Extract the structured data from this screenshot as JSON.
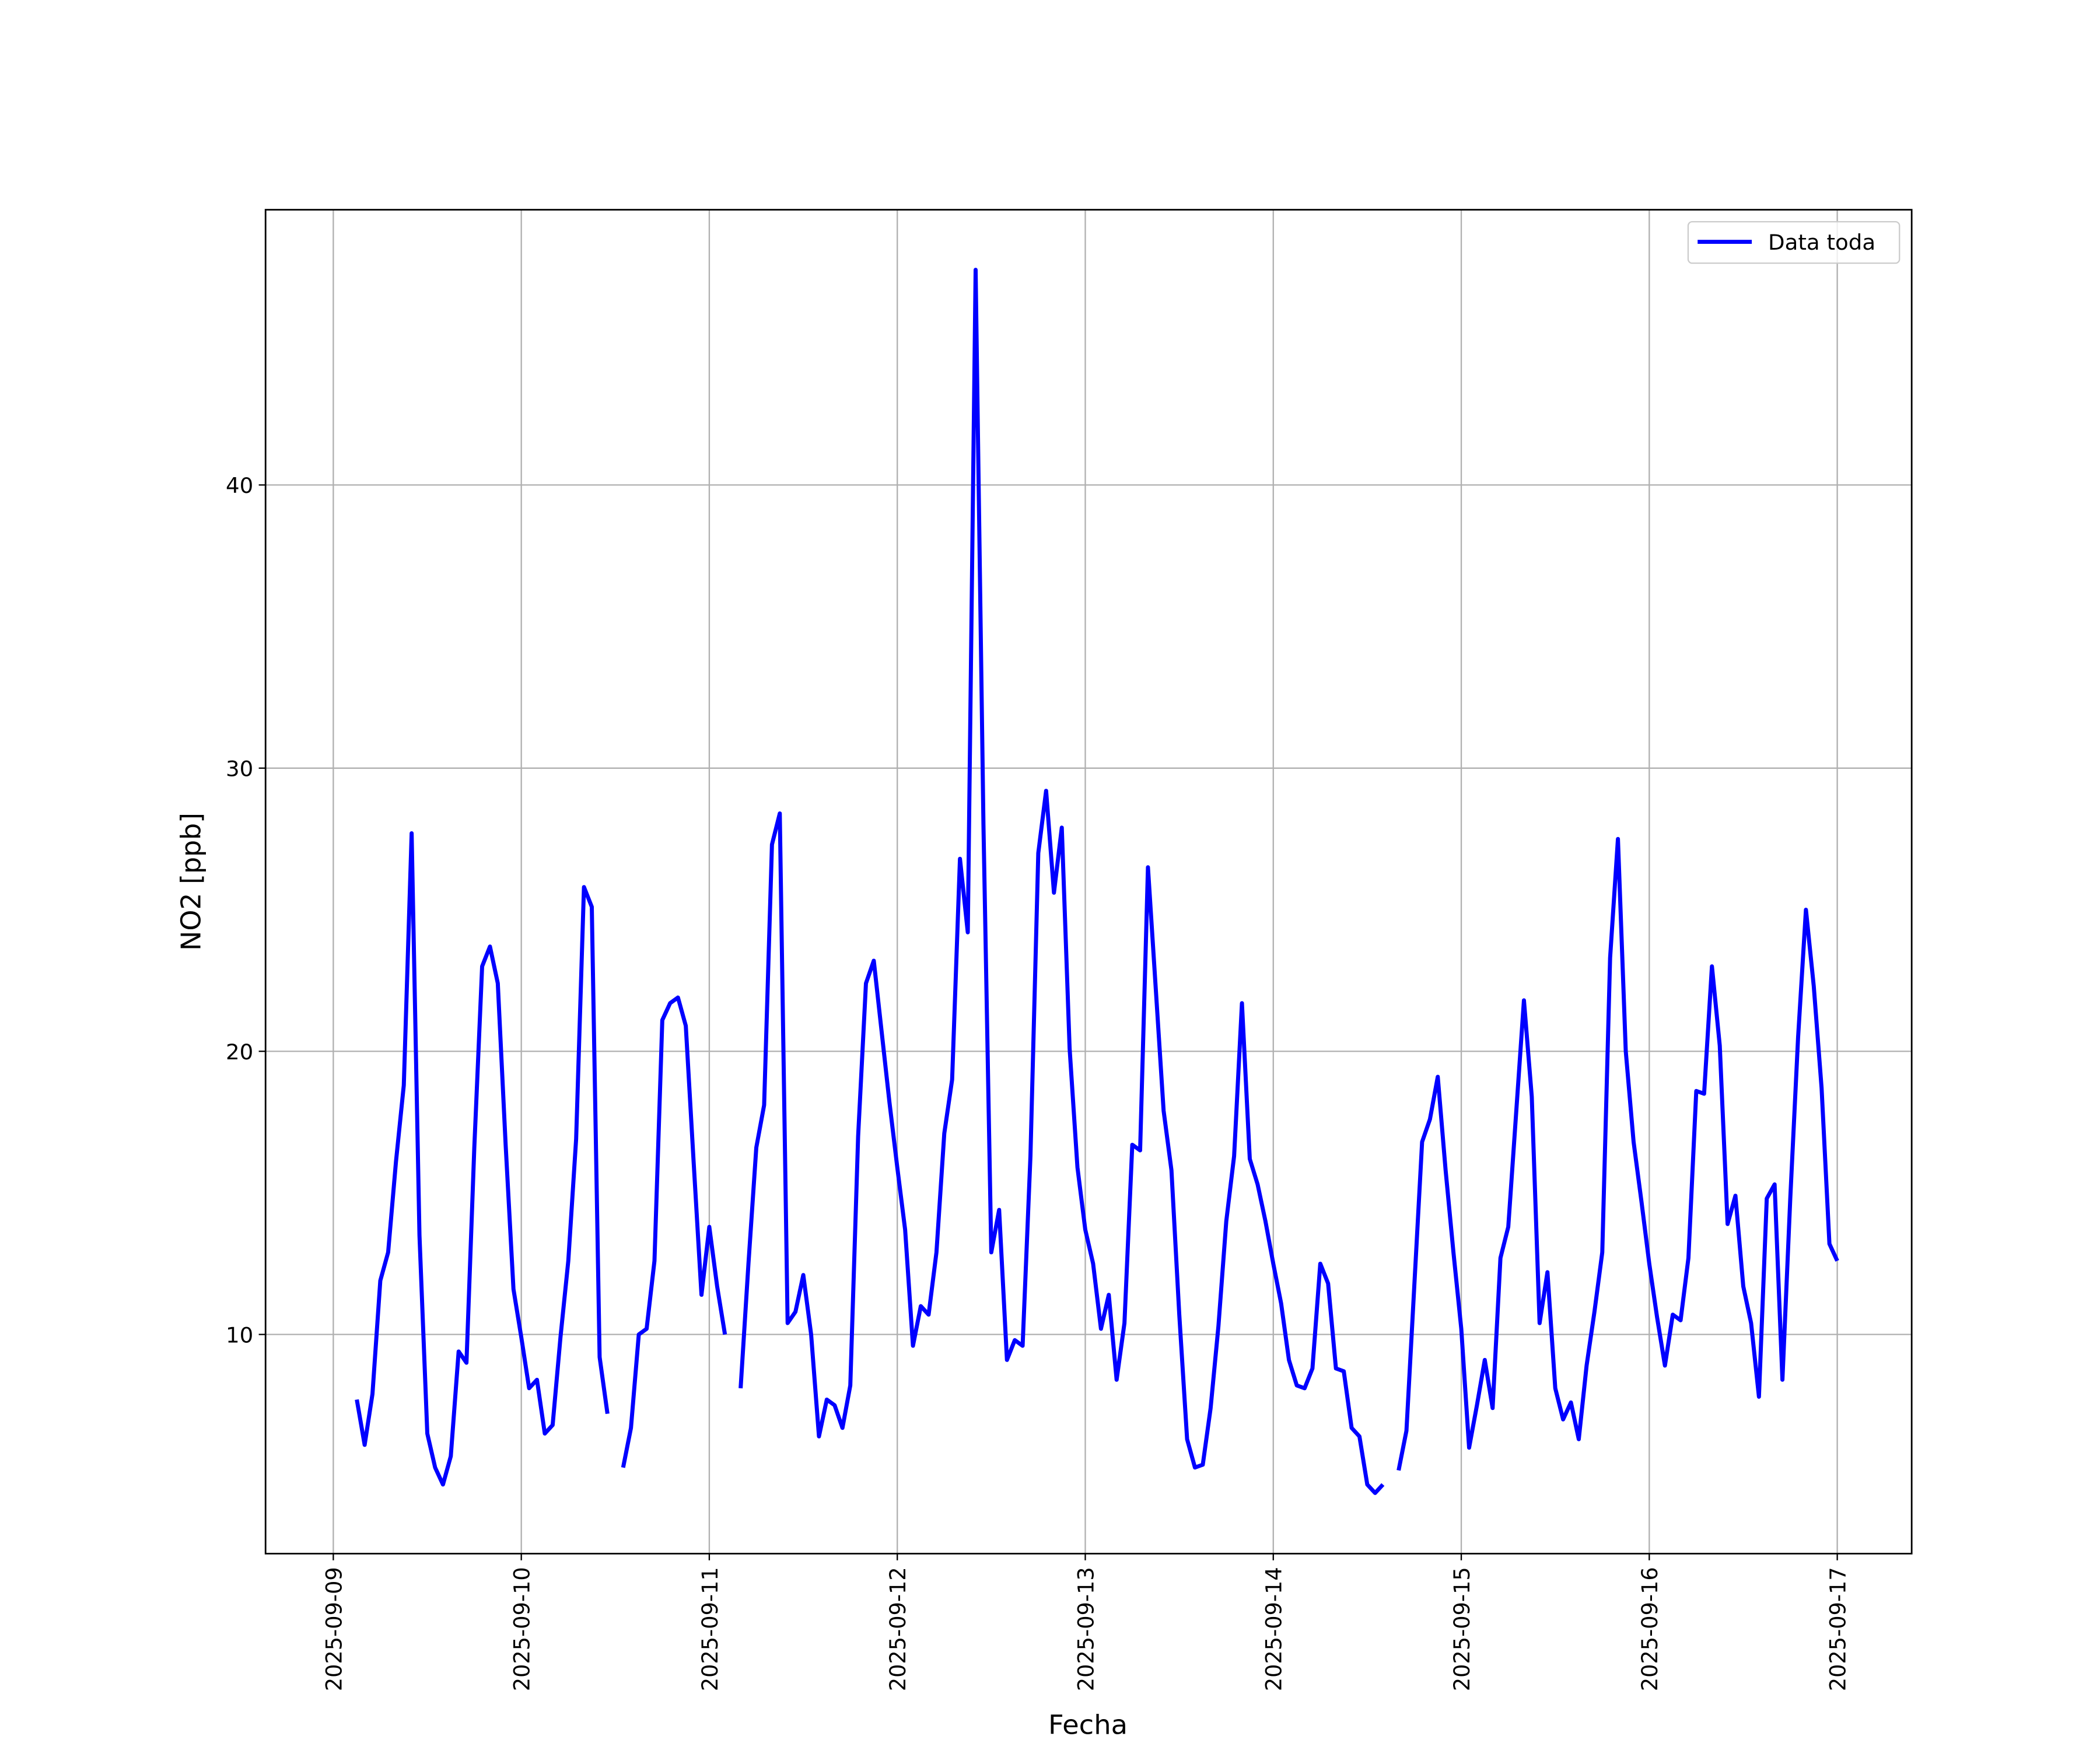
{
  "chart_data": {
    "type": "line",
    "ylabel": "NO2 [ppb]",
    "xlabel": "Fecha",
    "x": [
      "2025-09-09 03:00",
      "2025-09-09 04:00",
      "2025-09-09 05:00",
      "2025-09-09 06:00",
      "2025-09-09 07:00",
      "2025-09-09 08:00",
      "2025-09-09 09:00",
      "2025-09-09 10:00",
      "2025-09-09 11:00",
      "2025-09-09 12:00",
      "2025-09-09 13:00",
      "2025-09-09 14:00",
      "2025-09-09 15:00",
      "2025-09-09 16:00",
      "2025-09-09 17:00",
      "2025-09-09 18:00",
      "2025-09-09 19:00",
      "2025-09-09 20:00",
      "2025-09-09 21:00",
      "2025-09-09 22:00",
      "2025-09-09 23:00",
      "2025-09-10 00:00",
      "2025-09-10 01:00",
      "2025-09-10 02:00",
      "2025-09-10 03:00",
      "2025-09-10 04:00",
      "2025-09-10 05:00",
      "2025-09-10 06:00",
      "2025-09-10 07:00",
      "2025-09-10 08:00",
      "2025-09-10 09:00",
      "2025-09-10 10:00",
      "2025-09-10 11:00",
      "2025-09-10 12:00",
      "2025-09-10 13:00",
      "2025-09-10 14:00",
      "2025-09-10 15:00",
      "2025-09-10 16:00",
      "2025-09-10 17:00",
      "2025-09-10 18:00",
      "2025-09-10 19:00",
      "2025-09-10 20:00",
      "2025-09-10 21:00",
      "2025-09-10 22:00",
      "2025-09-10 23:00",
      "2025-09-11 00:00",
      "2025-09-11 01:00",
      "2025-09-11 02:00",
      "2025-09-11 03:00",
      "2025-09-11 04:00",
      "2025-09-11 05:00",
      "2025-09-11 06:00",
      "2025-09-11 07:00",
      "2025-09-11 08:00",
      "2025-09-11 09:00",
      "2025-09-11 10:00",
      "2025-09-11 11:00",
      "2025-09-11 12:00",
      "2025-09-11 13:00",
      "2025-09-11 14:00",
      "2025-09-11 15:00",
      "2025-09-11 16:00",
      "2025-09-11 17:00",
      "2025-09-11 18:00",
      "2025-09-11 19:00",
      "2025-09-11 20:00",
      "2025-09-11 21:00",
      "2025-09-11 22:00",
      "2025-09-11 23:00",
      "2025-09-12 00:00",
      "2025-09-12 01:00",
      "2025-09-12 02:00",
      "2025-09-12 03:00",
      "2025-09-12 04:00",
      "2025-09-12 05:00",
      "2025-09-12 06:00",
      "2025-09-12 07:00",
      "2025-09-12 08:00",
      "2025-09-12 09:00",
      "2025-09-12 10:00",
      "2025-09-12 11:00",
      "2025-09-12 12:00",
      "2025-09-12 13:00",
      "2025-09-12 14:00",
      "2025-09-12 15:00",
      "2025-09-12 16:00",
      "2025-09-12 17:00",
      "2025-09-12 18:00",
      "2025-09-12 19:00",
      "2025-09-12 20:00",
      "2025-09-12 21:00",
      "2025-09-12 22:00",
      "2025-09-12 23:00",
      "2025-09-13 00:00",
      "2025-09-13 01:00",
      "2025-09-13 02:00",
      "2025-09-13 03:00",
      "2025-09-13 04:00",
      "2025-09-13 05:00",
      "2025-09-13 06:00",
      "2025-09-13 07:00",
      "2025-09-13 08:00",
      "2025-09-13 09:00",
      "2025-09-13 10:00",
      "2025-09-13 11:00",
      "2025-09-13 12:00",
      "2025-09-13 13:00",
      "2025-09-13 14:00",
      "2025-09-13 15:00",
      "2025-09-13 16:00",
      "2025-09-13 17:00",
      "2025-09-13 18:00",
      "2025-09-13 19:00",
      "2025-09-13 20:00",
      "2025-09-13 21:00",
      "2025-09-13 22:00",
      "2025-09-13 23:00",
      "2025-09-14 00:00",
      "2025-09-14 01:00",
      "2025-09-14 02:00",
      "2025-09-14 03:00",
      "2025-09-14 04:00",
      "2025-09-14 05:00",
      "2025-09-14 06:00",
      "2025-09-14 07:00",
      "2025-09-14 08:00",
      "2025-09-14 09:00",
      "2025-09-14 10:00",
      "2025-09-14 11:00",
      "2025-09-14 12:00",
      "2025-09-14 13:00",
      "2025-09-14 14:00",
      "2025-09-14 15:00",
      "2025-09-14 16:00",
      "2025-09-14 17:00",
      "2025-09-14 18:00",
      "2025-09-14 19:00",
      "2025-09-14 20:00",
      "2025-09-14 21:00",
      "2025-09-14 22:00",
      "2025-09-14 23:00",
      "2025-09-15 00:00",
      "2025-09-15 01:00",
      "2025-09-15 02:00",
      "2025-09-15 03:00",
      "2025-09-15 04:00",
      "2025-09-15 05:00",
      "2025-09-15 06:00",
      "2025-09-15 07:00",
      "2025-09-15 08:00",
      "2025-09-15 09:00",
      "2025-09-15 10:00",
      "2025-09-15 11:00",
      "2025-09-15 12:00",
      "2025-09-15 13:00",
      "2025-09-15 14:00",
      "2025-09-15 15:00",
      "2025-09-15 16:00",
      "2025-09-15 17:00",
      "2025-09-15 18:00",
      "2025-09-15 19:00",
      "2025-09-15 20:00",
      "2025-09-15 21:00",
      "2025-09-15 22:00",
      "2025-09-15 23:00",
      "2025-09-16 00:00",
      "2025-09-16 01:00",
      "2025-09-16 02:00",
      "2025-09-16 03:00",
      "2025-09-16 04:00",
      "2025-09-16 05:00",
      "2025-09-16 06:00",
      "2025-09-16 07:00",
      "2025-09-16 08:00",
      "2025-09-16 09:00",
      "2025-09-16 10:00",
      "2025-09-16 11:00",
      "2025-09-16 12:00",
      "2025-09-16 13:00",
      "2025-09-16 14:00",
      "2025-09-16 15:00",
      "2025-09-16 16:00",
      "2025-09-16 17:00",
      "2025-09-16 18:00",
      "2025-09-16 19:00",
      "2025-09-16 20:00",
      "2025-09-16 21:00",
      "2025-09-16 22:00",
      "2025-09-16 23:00",
      "2025-09-17 00:00"
    ],
    "series": [
      {
        "name": "Data toda",
        "color": "#0000ff",
        "values": [
          7.7,
          6.1,
          7.9,
          11.9,
          12.9,
          16.1,
          18.8,
          27.7,
          13.5,
          6.5,
          5.3,
          4.7,
          5.7,
          9.4,
          9.0,
          16.6,
          23.0,
          23.7,
          22.4,
          16.7,
          11.6,
          9.9,
          8.1,
          8.4,
          6.5,
          6.8,
          9.9,
          12.6,
          16.9,
          25.8,
          25.1,
          9.2,
          7.2,
          null,
          5.3,
          6.7,
          10.0,
          10.2,
          12.6,
          21.1,
          21.7,
          21.9,
          20.9,
          16.1,
          11.4,
          13.8,
          11.7,
          10.0,
          null,
          8.1,
          12.5,
          16.6,
          18.1,
          27.3,
          28.4,
          10.4,
          10.8,
          12.1,
          10.0,
          6.4,
          7.7,
          7.5,
          6.7,
          8.2,
          17.0,
          22.4,
          23.2,
          20.7,
          18.2,
          15.9,
          13.7,
          9.6,
          11.0,
          10.7,
          12.9,
          17.1,
          19.0,
          26.8,
          24.2,
          47.6,
          28.0,
          12.9,
          14.4,
          9.1,
          9.8,
          9.6,
          16.3,
          27.0,
          29.2,
          25.6,
          27.9,
          20.1,
          15.9,
          13.7,
          12.5,
          10.2,
          11.4,
          8.4,
          10.4,
          16.7,
          16.5,
          26.5,
          22.2,
          17.9,
          15.8,
          10.7,
          6.3,
          5.3,
          5.4,
          7.4,
          10.3,
          14.0,
          16.3,
          21.7,
          16.2,
          15.3,
          14.0,
          12.5,
          11.1,
          9.1,
          8.2,
          8.1,
          8.8,
          12.5,
          11.8,
          8.8,
          8.7,
          6.7,
          6.4,
          4.7,
          4.4,
          4.7,
          null,
          5.2,
          6.6,
          11.7,
          16.8,
          17.6,
          19.1,
          15.8,
          12.9,
          10.2,
          6.0,
          7.5,
          9.1,
          7.4,
          12.7,
          13.8,
          17.8,
          21.8,
          18.4,
          10.4,
          12.2,
          8.1,
          7.0,
          7.6,
          6.3,
          8.9,
          10.8,
          12.9,
          23.3,
          27.5,
          20.0,
          16.8,
          14.7,
          12.5,
          10.6,
          8.9,
          10.7,
          10.5,
          12.7,
          18.6,
          18.5,
          23.0,
          20.2,
          13.9,
          14.9,
          11.7,
          10.4,
          7.8,
          14.8,
          15.3,
          8.4,
          14.8,
          20.5,
          25.0,
          22.3,
          18.7,
          13.2,
          12.6
        ]
      }
    ],
    "xlim": [
      "2025-09-08 15:21",
      "2025-09-17 09:30"
    ],
    "xticks": [
      "2025-09-09",
      "2025-09-10",
      "2025-09-11",
      "2025-09-12",
      "2025-09-13",
      "2025-09-14",
      "2025-09-15",
      "2025-09-16",
      "2025-09-17"
    ],
    "ylim": [
      2.26,
      49.72
    ],
    "yticks": [
      10,
      20,
      30,
      40
    ],
    "grid": true,
    "legend": "upper right"
  }
}
